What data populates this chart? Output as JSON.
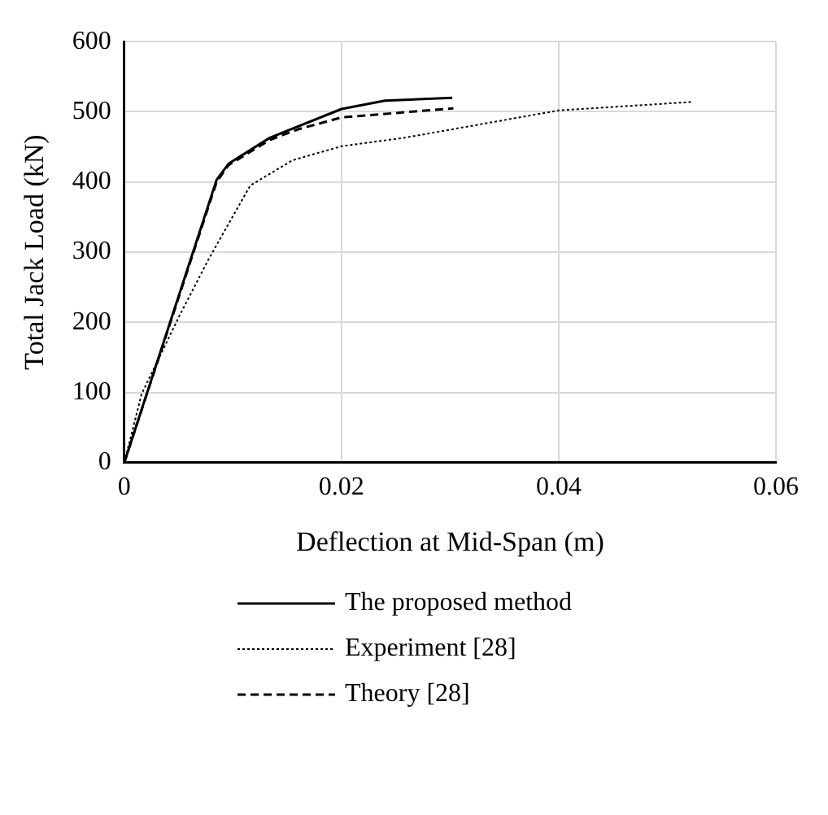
{
  "chart_data": {
    "type": "line",
    "xlabel": "Deflection at Mid-Span (m)",
    "ylabel": "Total Jack Load (kN)",
    "xlim": [
      0,
      0.06
    ],
    "xticks": [
      0,
      0.02,
      0.04,
      0.06
    ],
    "ylim": [
      0,
      600
    ],
    "yticks": [
      0,
      100,
      200,
      300,
      400,
      500,
      600
    ],
    "grid": true,
    "legend": "bottom",
    "marker": "none",
    "series": [
      {
        "name": "The proposed method",
        "color": "#000000",
        "line_style": "solid",
        "x": [
          0,
          0.0085,
          0.0096,
          0.0134,
          0.02,
          0.024,
          0.0302
        ],
        "values": [
          0,
          403,
          426,
          463,
          504,
          516,
          520
        ]
      },
      {
        "name": "Experiment [28]",
        "color": "#000000",
        "line_style": "dotted",
        "x": [
          0,
          0.0016,
          0.0051,
          0.0078,
          0.0116,
          0.0155,
          0.02,
          0.0258,
          0.04,
          0.0522
        ],
        "values": [
          0,
          98,
          210,
          291,
          395,
          431,
          451,
          463,
          502,
          514
        ]
      },
      {
        "name": "Theory [28]",
        "color": "#000000",
        "line_style": "dashed",
        "x": [
          0,
          0.0085,
          0.0096,
          0.0134,
          0.016,
          0.02,
          0.0303
        ],
        "values": [
          0,
          400,
          424,
          460,
          475,
          492,
          505
        ]
      }
    ]
  }
}
